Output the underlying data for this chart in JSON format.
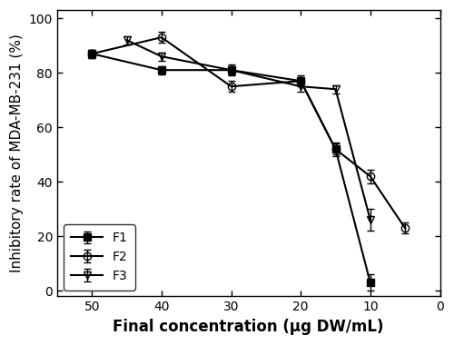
{
  "title": "",
  "xlabel": "Final concentration (μg DW/mL)",
  "ylabel": "Inhibitory rate of MDA-MB-231 (%)",
  "xlim": [
    55,
    0
  ],
  "ylim": [
    -2,
    103
  ],
  "xticks": [
    50,
    40,
    30,
    20,
    10,
    0
  ],
  "yticks": [
    0,
    20,
    40,
    60,
    80,
    100
  ],
  "F1": {
    "x": [
      50,
      40,
      30,
      20,
      15,
      10
    ],
    "y": [
      87,
      81,
      81,
      77,
      52,
      3
    ],
    "yerr": [
      1.5,
      1.5,
      1.5,
      1.5,
      2.0,
      3.0
    ],
    "marker": "s",
    "fillstyle": "full",
    "label": "F1"
  },
  "F2": {
    "x": [
      50,
      40,
      30,
      20,
      15,
      10,
      5
    ],
    "y": [
      87,
      93,
      75,
      77,
      52,
      42,
      23
    ],
    "yerr": [
      1.5,
      2.0,
      2.0,
      2.0,
      2.5,
      2.5,
      2.0
    ],
    "marker": "o",
    "fillstyle": "none",
    "label": "F2"
  },
  "F3": {
    "x": [
      45,
      40,
      30,
      20,
      15,
      10
    ],
    "y": [
      92,
      86,
      81,
      75,
      74,
      26
    ],
    "yerr": [
      1.5,
      1.5,
      2.0,
      2.0,
      1.5,
      4.0
    ],
    "marker": "v",
    "fillstyle": "none",
    "label": "F3"
  },
  "legend_loc": "lower left",
  "linewidth": 1.5,
  "markersize": 6,
  "capsize": 3,
  "elinewidth": 1.0,
  "font_size": 10,
  "tick_font_size": 10,
  "label_font_size": 11,
  "xlabel_fontsize": 12,
  "ylabel_fontsize": 11
}
